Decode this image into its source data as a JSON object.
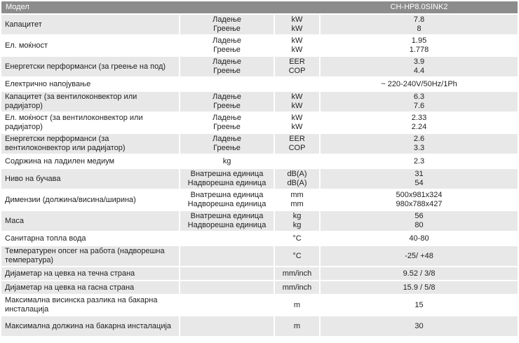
{
  "header": {
    "model_label": "Модел",
    "model_value": "CH-HP8.0SINK2"
  },
  "colors": {
    "header_bg": "#8c8c8c",
    "header_text": "#ffffff",
    "shaded_row_bg": "#e8e8e8",
    "text": "#1f1f1f"
  },
  "rows": [
    {
      "label": "Капацитет",
      "shaded": true,
      "tall": true,
      "lines": [
        {
          "cond": "Ладење",
          "unit": "kW",
          "value": "7.8"
        },
        {
          "cond": "Греење",
          "unit": "kW",
          "value": "8"
        }
      ]
    },
    {
      "label": "Ел. моќност",
      "shaded": false,
      "tall": true,
      "lines": [
        {
          "cond": "Ладење",
          "unit": "kW",
          "value": "1.95"
        },
        {
          "cond": "Греење",
          "unit": "kW",
          "value": "1.778"
        }
      ]
    },
    {
      "label": "Енергетски перформанси (за греење на под)",
      "shaded": true,
      "tall": true,
      "lines": [
        {
          "cond": "Ладење",
          "unit": "EER",
          "value": "3.9"
        },
        {
          "cond": "Греење",
          "unit": "COP",
          "value": "4.4"
        }
      ]
    },
    {
      "label": "Електрично напојување",
      "shaded": false,
      "tall": false,
      "lines": [
        {
          "cond": "",
          "unit": "",
          "value": "~ 220-240V/50Hz/1Ph"
        }
      ]
    },
    {
      "label": "Капацитет (за вентилоконвектор или радијатор)",
      "shaded": true,
      "tall": true,
      "lines": [
        {
          "cond": "Ладење",
          "unit": "kW",
          "value": "6.3"
        },
        {
          "cond": "Греење",
          "unit": "kW",
          "value": "7.6"
        }
      ]
    },
    {
      "label": "Ел. моќност (за вентилоконвектор или радијатор)",
      "shaded": false,
      "tall": true,
      "lines": [
        {
          "cond": "Ладење",
          "unit": "kW",
          "value": "2.33"
        },
        {
          "cond": "Греење",
          "unit": "kW",
          "value": "2.24"
        }
      ]
    },
    {
      "label": "Енергетски перформанси (за вентилоконвектор или радијатор)",
      "shaded": true,
      "tall": true,
      "lines": [
        {
          "cond": "Ладење",
          "unit": "EER",
          "value": "2.6"
        },
        {
          "cond": "Греење",
          "unit": "COP",
          "value": "3.3"
        }
      ]
    },
    {
      "label": "Содржина на ладилен медиум",
      "shaded": false,
      "tall": false,
      "lines": [
        {
          "cond": "kg",
          "unit": "",
          "value": "2.3"
        }
      ]
    },
    {
      "label": "Ниво на бучава",
      "shaded": true,
      "tall": true,
      "lines": [
        {
          "cond": "Внатрешна единица",
          "unit": "dB(A)",
          "value": "31"
        },
        {
          "cond": "Надворешна единица",
          "unit": "dB(A)",
          "value": "54"
        }
      ]
    },
    {
      "label": "Димензии (должина/висина/ширина)",
      "shaded": false,
      "tall": true,
      "lines": [
        {
          "cond": "Внатрешна единица",
          "unit": "mm",
          "value": "500x981x324"
        },
        {
          "cond": "Надворешна единица",
          "unit": "mm",
          "value": "980x788x427"
        }
      ]
    },
    {
      "label": "Маса",
      "shaded": true,
      "tall": true,
      "lines": [
        {
          "cond": "Внатрешна единица",
          "unit": "kg",
          "value": "56"
        },
        {
          "cond": "Надворешна единица",
          "unit": "kg",
          "value": "80"
        }
      ]
    },
    {
      "label": "Санитарна топла вода",
      "shaded": false,
      "tall": false,
      "lines": [
        {
          "cond": "",
          "unit": "°C",
          "value": "40-80"
        }
      ]
    },
    {
      "label": "Температурен опсег на работа (надворешна температура)",
      "shaded": true,
      "tall": true,
      "lines": [
        {
          "cond": "",
          "unit": "°C",
          "value": "-25/ +48"
        }
      ]
    },
    {
      "label": "Дијаметар на цевка на течна страна",
      "shaded": true,
      "tall": false,
      "lines": [
        {
          "cond": "",
          "unit": "mm/inch",
          "value": "9.52 / 3/8"
        }
      ]
    },
    {
      "label": "Дијаметар на цевка на гасна страна",
      "shaded": true,
      "tall": false,
      "lines": [
        {
          "cond": "",
          "unit": "mm/inch",
          "value": "15.9 / 5/8"
        }
      ]
    },
    {
      "label": "Максимална висинска разлика на бакарна инсталација",
      "shaded": false,
      "tall": true,
      "lines": [
        {
          "cond": "",
          "unit": "m",
          "value": "15"
        }
      ]
    },
    {
      "label": "Максимална должина на бакарна инсталација",
      "shaded": true,
      "tall": true,
      "lines": [
        {
          "cond": "",
          "unit": "m",
          "value": "30"
        }
      ]
    }
  ]
}
